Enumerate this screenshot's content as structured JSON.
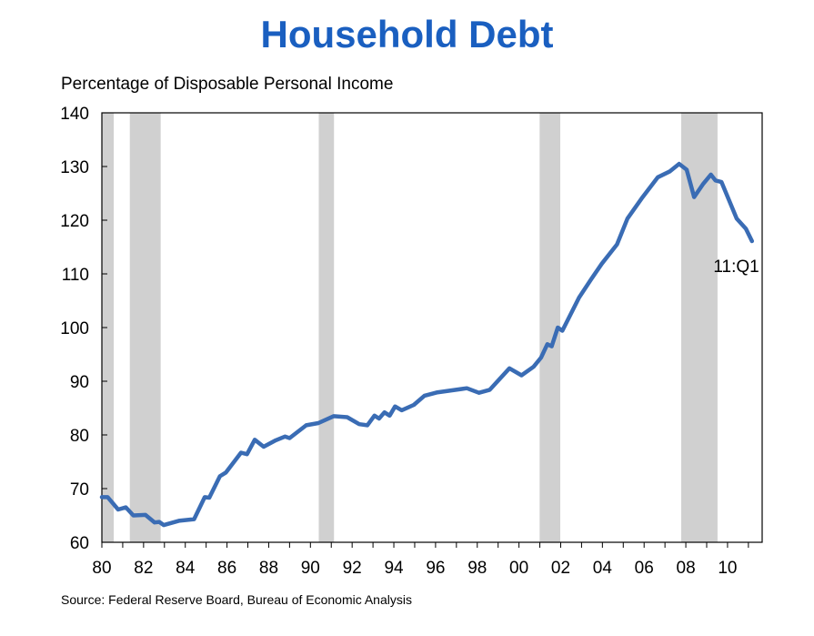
{
  "chart_data": {
    "type": "line",
    "title": "Household Debt",
    "ylabel": "Percentage of Disposable Personal Income",
    "xlabel": "",
    "source": "Source: Federal Reserve Board, Bureau of Economic Analysis",
    "ylim": [
      60,
      140
    ],
    "xlim": [
      1980,
      2011.66
    ],
    "yticks": [
      60,
      70,
      80,
      90,
      100,
      110,
      120,
      130,
      140
    ],
    "xticks": [
      {
        "year": 1980,
        "label": "80"
      },
      {
        "year": 1982,
        "label": "82"
      },
      {
        "year": 1984,
        "label": "84"
      },
      {
        "year": 1986,
        "label": "86"
      },
      {
        "year": 1988,
        "label": "88"
      },
      {
        "year": 1990,
        "label": "90"
      },
      {
        "year": 1992,
        "label": "92"
      },
      {
        "year": 1994,
        "label": "94"
      },
      {
        "year": 1996,
        "label": "96"
      },
      {
        "year": 1998,
        "label": "98"
      },
      {
        "year": 2000,
        "label": "00"
      },
      {
        "year": 2002,
        "label": "02"
      },
      {
        "year": 2004,
        "label": "04"
      },
      {
        "year": 2006,
        "label": "06"
      },
      {
        "year": 2008,
        "label": "08"
      },
      {
        "year": 2010,
        "label": "10"
      }
    ],
    "grid": false,
    "recessions": [
      [
        1980.0,
        1980.57
      ],
      [
        1981.34,
        1982.82
      ],
      [
        1990.4,
        1991.13
      ],
      [
        2000.99,
        2001.98
      ],
      [
        2007.78,
        2009.52
      ]
    ],
    "line_color": "#3a6cb4",
    "recession_color": "#d0d0d0",
    "title_color": "#1a5fc0",
    "annotation": {
      "text": "11:Q1",
      "year": 2011.17,
      "value": 116.1
    },
    "series": [
      {
        "name": "Household Debt",
        "points": [
          [
            1980.0,
            68.4
          ],
          [
            1980.28,
            68.4
          ],
          [
            1980.78,
            66.1
          ],
          [
            1981.15,
            66.5
          ],
          [
            1981.51,
            65.0
          ],
          [
            1982.09,
            65.1
          ],
          [
            1982.53,
            63.7
          ],
          [
            1982.75,
            63.8
          ],
          [
            1982.97,
            63.2
          ],
          [
            1983.69,
            64.0
          ],
          [
            1984.42,
            64.3
          ],
          [
            1984.93,
            68.4
          ],
          [
            1985.15,
            68.3
          ],
          [
            1985.66,
            72.3
          ],
          [
            1985.95,
            73.0
          ],
          [
            1986.67,
            76.7
          ],
          [
            1986.96,
            76.4
          ],
          [
            1987.33,
            79.1
          ],
          [
            1987.76,
            77.8
          ],
          [
            1988.34,
            79.0
          ],
          [
            1988.78,
            79.7
          ],
          [
            1989.0,
            79.4
          ],
          [
            1989.8,
            81.8
          ],
          [
            1990.38,
            82.2
          ],
          [
            1991.11,
            83.5
          ],
          [
            1991.76,
            83.3
          ],
          [
            1992.34,
            82.0
          ],
          [
            1992.73,
            81.8
          ],
          [
            1993.07,
            83.6
          ],
          [
            1993.29,
            83.05
          ],
          [
            1993.55,
            84.2
          ],
          [
            1993.8,
            83.6
          ],
          [
            1994.06,
            85.3
          ],
          [
            1994.38,
            84.6
          ],
          [
            1994.96,
            85.6
          ],
          [
            1995.47,
            87.3
          ],
          [
            1996.05,
            87.9
          ],
          [
            1997.5,
            88.7
          ],
          [
            1998.08,
            87.85
          ],
          [
            1998.6,
            88.4
          ],
          [
            1999.54,
            92.4
          ],
          [
            2000.12,
            91.1
          ],
          [
            2000.7,
            92.7
          ],
          [
            2001.06,
            94.4
          ],
          [
            2001.36,
            96.9
          ],
          [
            2001.57,
            96.5
          ],
          [
            2001.86,
            100.0
          ],
          [
            2002.08,
            99.4
          ],
          [
            2002.88,
            105.6
          ],
          [
            2003.46,
            109.0
          ],
          [
            2003.97,
            111.9
          ],
          [
            2004.7,
            115.5
          ],
          [
            2005.2,
            120.3
          ],
          [
            2005.93,
            124.3
          ],
          [
            2006.66,
            128.0
          ],
          [
            2007.24,
            129.1
          ],
          [
            2007.68,
            130.5
          ],
          [
            2008.04,
            129.4
          ],
          [
            2008.4,
            124.3
          ],
          [
            2008.84,
            126.8
          ],
          [
            2009.2,
            128.5
          ],
          [
            2009.42,
            127.4
          ],
          [
            2009.71,
            127.1
          ],
          [
            2010.44,
            120.3
          ],
          [
            2010.88,
            118.4
          ],
          [
            2011.17,
            116.1
          ]
        ]
      }
    ]
  }
}
